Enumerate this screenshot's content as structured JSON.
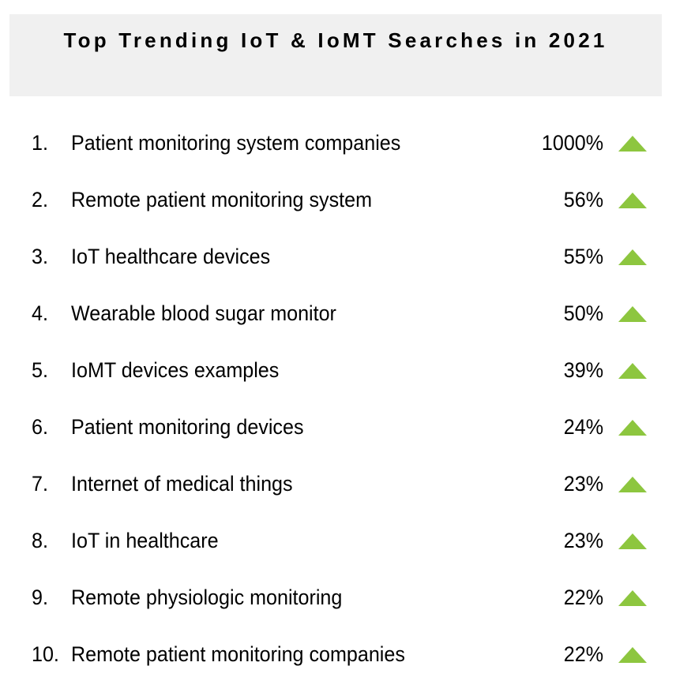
{
  "title": "Top Trending IoT & IoMT Searches in 2021",
  "accent_color": "#8dc63f",
  "trend_icon": "up-triangle-icon",
  "items": [
    {
      "rank": "1.",
      "label": "Patient monitoring system companies",
      "change": "1000%"
    },
    {
      "rank": "2.",
      "label": "Remote patient monitoring system",
      "change": "56%"
    },
    {
      "rank": "3.",
      "label": "IoT healthcare devices",
      "change": "55%"
    },
    {
      "rank": "4.",
      "label": "Wearable blood sugar monitor",
      "change": "50%"
    },
    {
      "rank": "5.",
      "label": "IoMT devices examples",
      "change": "39%"
    },
    {
      "rank": "6.",
      "label": "Patient monitoring devices",
      "change": "24%"
    },
    {
      "rank": "7.",
      "label": "Internet of medical things",
      "change": "23%"
    },
    {
      "rank": "8.",
      "label": "IoT in healthcare",
      "change": "23%"
    },
    {
      "rank": "9.",
      "label": "Remote physiologic monitoring",
      "change": "22%"
    },
    {
      "rank": "10.",
      "label": "Remote patient monitoring companies",
      "change": "22%"
    }
  ]
}
